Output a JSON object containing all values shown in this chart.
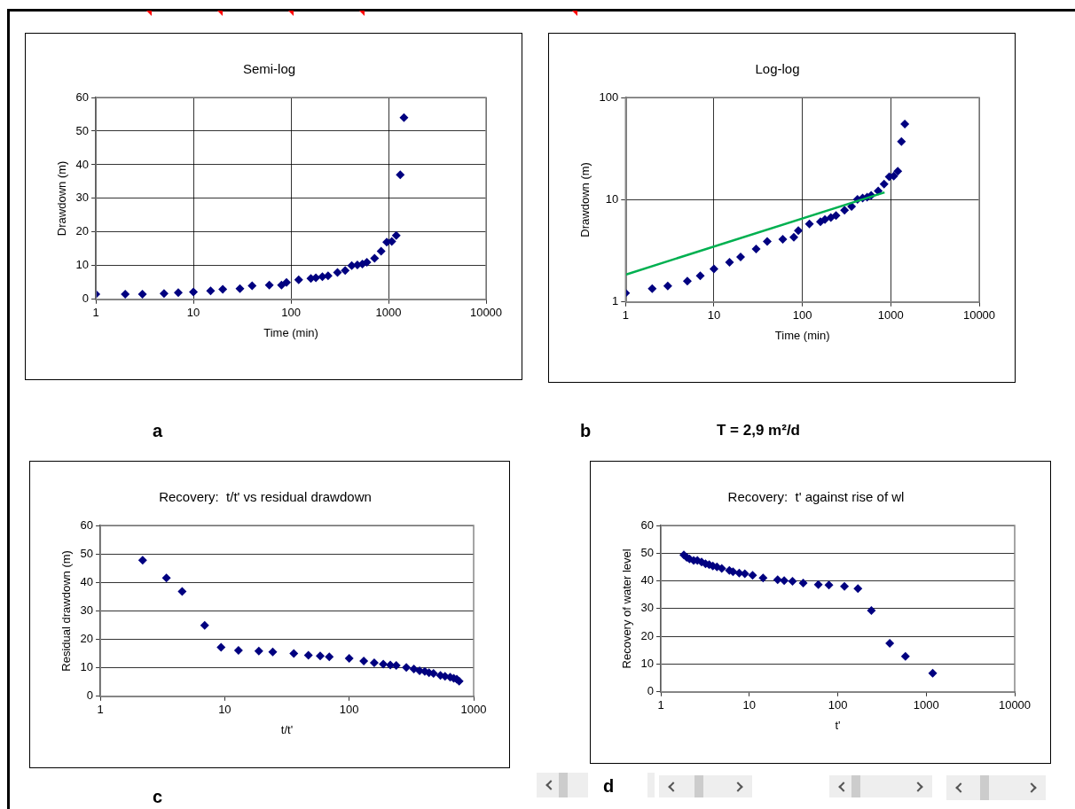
{
  "chart_data": [
    {
      "type": "scatter",
      "title": "Semi-log",
      "xlabel": "Time (min)",
      "ylabel": "Drawdown (m)",
      "log": "x",
      "grid": true,
      "legend": false,
      "marker": "diamond",
      "x": [
        1,
        2,
        3,
        5,
        7,
        10,
        15,
        20,
        30,
        40,
        60,
        80,
        90,
        120,
        160,
        180,
        210,
        240,
        300,
        360,
        420,
        480,
        540,
        600,
        720,
        840,
        960,
        1080,
        1200,
        1320,
        1440
      ],
      "series": [
        {
          "color": "#000080",
          "values": [
            1.5,
            1.5,
            1.5,
            1.7,
            2,
            2.2,
            2.5,
            3,
            3.2,
            4,
            4.2,
            4.2,
            5,
            5.8,
            6.2,
            6.4,
            6.7,
            7,
            8,
            8.6,
            10,
            10.2,
            10.5,
            11,
            12.2,
            14.3,
            17,
            17.2,
            19,
            37,
            54
          ]
        }
      ],
      "xlim": [
        1,
        10000
      ],
      "xticks": [
        1,
        10,
        100,
        1000,
        10000
      ],
      "ylim": [
        0,
        60
      ],
      "yticks": [
        0,
        10,
        20,
        30,
        40,
        50,
        60
      ],
      "annotations": [
        "a"
      ]
    },
    {
      "type": "scatter",
      "title": "Log-log",
      "xlabel": "Time (min)",
      "ylabel": "Drawdown (m)",
      "log": "xy",
      "grid": true,
      "legend": false,
      "marker": "diamond",
      "x": [
        1,
        2,
        3,
        5,
        7,
        10,
        15,
        20,
        30,
        40,
        60,
        80,
        90,
        120,
        160,
        180,
        210,
        240,
        300,
        360,
        420,
        480,
        540,
        600,
        720,
        840,
        960,
        1080,
        1200,
        1320,
        1440
      ],
      "series": [
        {
          "color": "#000080",
          "values": [
            1.22,
            1.35,
            1.43,
            1.6,
            1.8,
            2.1,
            2.45,
            2.75,
            3.3,
            3.9,
            4.1,
            4.3,
            5,
            5.8,
            6.1,
            6.4,
            6.7,
            7,
            7.9,
            8.6,
            10.1,
            10.4,
            10.6,
            11,
            12.2,
            14.2,
            16.8,
            17,
            19,
            37,
            55
          ]
        },
        {
          "type": "line",
          "color": "#00b050",
          "marker": "none",
          "x": [
            1,
            850
          ],
          "values": [
            1.85,
            11.8
          ]
        }
      ],
      "xlim": [
        1,
        10000
      ],
      "xticks": [
        1,
        10,
        100,
        1000,
        10000
      ],
      "ylim": [
        1,
        100
      ],
      "yticks": [
        1,
        10,
        100
      ],
      "annotations": [
        "b",
        "T = 2,9 m²/d"
      ]
    },
    {
      "type": "scatter",
      "title": "Recovery:  t/t' vs residual drawdown",
      "xlabel": "t/t'",
      "ylabel": "Residual drawdown (m)",
      "log": "x",
      "grid": "y",
      "legend": false,
      "marker": "diamond",
      "x": [
        2.19,
        3.4,
        4.55,
        6.9,
        9.35,
        12.9,
        18.8,
        24.3,
        35.9,
        47,
        58.5,
        69.2,
        100,
        131,
        159,
        188,
        214,
        239,
        288,
        331,
        368,
        405,
        438,
        476,
        541,
        589,
        648,
        692,
        732,
        765
      ],
      "series": [
        {
          "color": "#000080",
          "values": [
            47.8,
            41.6,
            36.8,
            24.9,
            17.2,
            16.1,
            15.9,
            15.6,
            15,
            14.4,
            14.2,
            13.9,
            13.3,
            12.4,
            11.8,
            11.3,
            11,
            10.8,
            10.1,
            9.6,
            9,
            8.7,
            8.3,
            8,
            7.3,
            7,
            6.7,
            6.3,
            6,
            5.3
          ]
        }
      ],
      "xlim": [
        1,
        1000
      ],
      "xticks": [
        1,
        10,
        100,
        1000
      ],
      "ylim": [
        0,
        60
      ],
      "yticks": [
        0,
        10,
        20,
        30,
        40,
        50,
        60
      ],
      "annotations": [
        "c"
      ]
    },
    {
      "type": "scatter",
      "title": "Recovery:  t' against rise of wl",
      "xlabel": "t'",
      "ylabel": "Recovery of water level",
      "log": "x",
      "grid": "y",
      "legend": false,
      "marker": "diamond",
      "x": [
        1.82,
        1.96,
        2.11,
        2.35,
        2.59,
        2.89,
        3.2,
        3.52,
        3.87,
        4.31,
        4.88,
        5.95,
        6.55,
        7.69,
        8.9,
        10.9,
        14.3,
        20.9,
        24.8,
        30.8,
        40.7,
        60.3,
        79.5,
        119,
        169,
        240,
        387,
        582,
        1183
      ],
      "series": [
        {
          "color": "#000080",
          "values": [
            49.4,
            48.5,
            47.9,
            47.4,
            47.4,
            46.8,
            46.2,
            45.9,
            45.4,
            45.1,
            44.5,
            43.8,
            43.3,
            42.8,
            42.6,
            42,
            41.1,
            40.4,
            40.1,
            39.9,
            39.2,
            38.7,
            38.5,
            38,
            37.2,
            29.3,
            17.5,
            12.8,
            6.7
          ]
        }
      ],
      "xlim": [
        1,
        10000
      ],
      "xticks": [
        1,
        10,
        100,
        1000,
        10000
      ],
      "ylim": [
        0,
        60
      ],
      "yticks": [
        0,
        10,
        20,
        30,
        40,
        50,
        60
      ],
      "annotations": [
        "d"
      ]
    }
  ]
}
